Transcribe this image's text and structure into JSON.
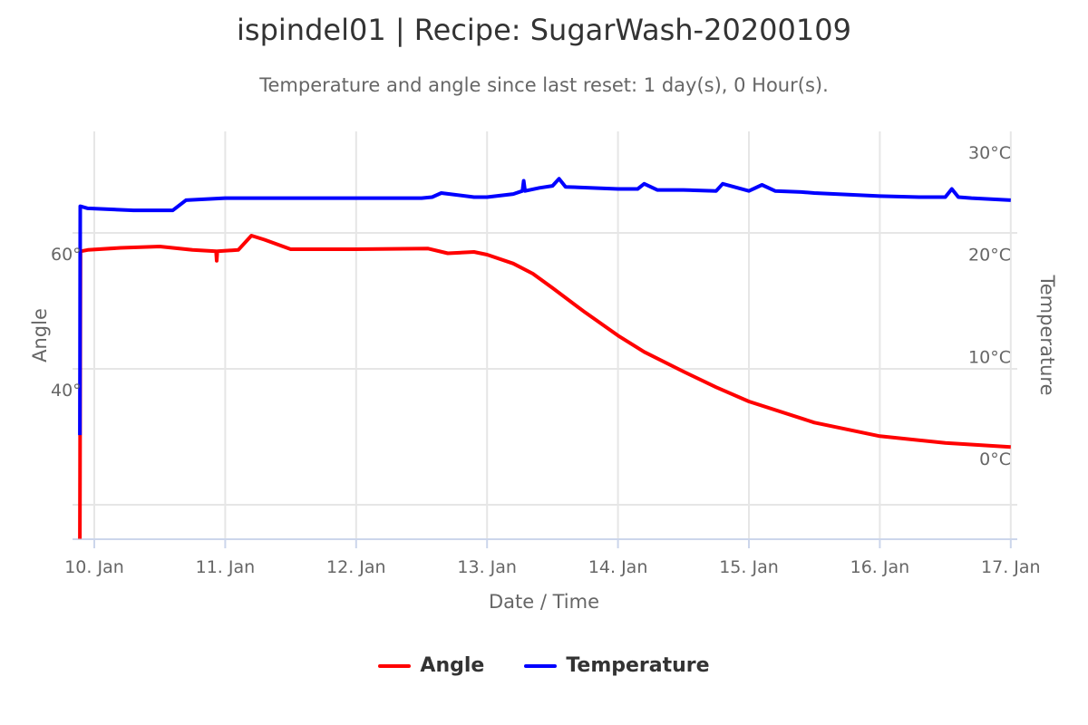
{
  "chart_data": {
    "type": "line",
    "title": "ispindel01 | Recipe: SugarWash-20200109",
    "subtitle": "Temperature and angle since last reset: 1 day(s), 0 Hour(s).",
    "xlabel": "Date / Time",
    "x_unit": "day of January 2020",
    "xlim": [
      9.84,
      17.05
    ],
    "x_ticks": [
      10,
      11,
      12,
      13,
      14,
      15,
      16,
      17
    ],
    "x_tick_labels": [
      "10. Jan",
      "11. Jan",
      "12. Jan",
      "13. Jan",
      "14. Jan",
      "15. Jan",
      "16. Jan",
      "17. Jan"
    ],
    "y_left": {
      "label": "Angle",
      "ylim": [
        15,
        75
      ],
      "ticks": [
        20,
        40,
        60
      ],
      "tick_labels": [
        "",
        "40°",
        "60°"
      ]
    },
    "y_right": {
      "label": "Temperature",
      "ylim": [
        -7.9,
        32.9
      ],
      "ticks": [
        0,
        10,
        20,
        30
      ],
      "tick_labels": [
        "0°C",
        "10°C",
        "20°C",
        "30°C"
      ]
    },
    "grid": true,
    "legend_position": "bottom-center",
    "series": [
      {
        "name": "Angle",
        "axis": "left",
        "color": "#ff0000",
        "x": [
          9.89,
          9.895,
          9.95,
          10.2,
          10.5,
          10.75,
          10.93,
          10.935,
          10.94,
          11.1,
          11.2,
          11.3,
          11.5,
          12.0,
          12.55,
          12.7,
          12.9,
          13.0,
          13.2,
          13.35,
          13.5,
          13.75,
          14.0,
          14.2,
          14.5,
          14.75,
          15.0,
          15.5,
          16.0,
          16.5,
          17.0
        ],
        "y": [
          15,
          57.3,
          57.5,
          57.8,
          58.0,
          57.5,
          57.3,
          55.9,
          57.3,
          57.5,
          59.6,
          59.0,
          57.6,
          57.6,
          57.7,
          57.0,
          57.2,
          56.8,
          55.5,
          54.0,
          51.9,
          48.3,
          44.9,
          42.5,
          39.6,
          37.3,
          35.2,
          32.1,
          30.1,
          29.1,
          28.5
        ]
      },
      {
        "name": "Temperature",
        "axis": "right",
        "color": "#0000ff",
        "x": [
          9.89,
          9.893,
          9.95,
          10.3,
          10.6,
          10.7,
          11.0,
          12.5,
          12.58,
          12.65,
          12.9,
          13.0,
          13.2,
          13.27,
          13.28,
          13.29,
          13.4,
          13.5,
          13.55,
          13.6,
          14.0,
          14.15,
          14.2,
          14.3,
          14.5,
          14.75,
          14.8,
          15.0,
          15.1,
          15.2,
          15.4,
          15.5,
          16.0,
          16.3,
          16.5,
          16.55,
          16.6,
          16.7,
          17.0
        ],
        "y": [
          2.3,
          24.7,
          24.5,
          24.3,
          24.3,
          25.3,
          25.5,
          25.5,
          25.6,
          26.0,
          25.6,
          25.6,
          25.9,
          26.2,
          27.2,
          26.2,
          26.5,
          26.7,
          27.4,
          26.6,
          26.4,
          26.4,
          26.9,
          26.3,
          26.3,
          26.2,
          26.9,
          26.2,
          26.8,
          26.2,
          26.1,
          26.0,
          25.7,
          25.6,
          25.6,
          26.4,
          25.6,
          25.5,
          25.3
        ]
      }
    ]
  }
}
